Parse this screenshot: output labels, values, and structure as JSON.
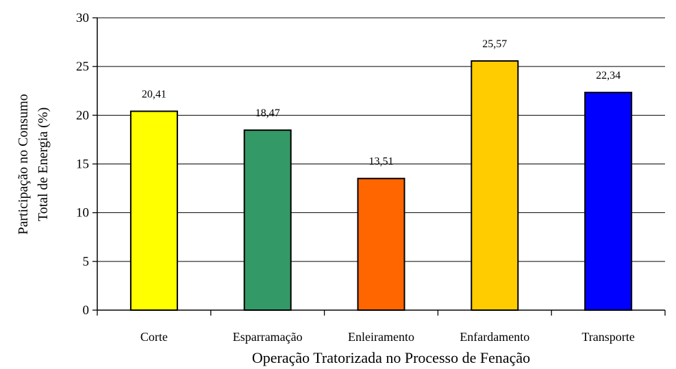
{
  "chart_data": {
    "type": "bar",
    "categories": [
      "Corte",
      "Esparramação",
      "Enleiramento",
      "Enfardamento",
      "Transporte"
    ],
    "values": [
      20.41,
      18.47,
      13.51,
      25.57,
      22.34
    ],
    "data_labels": [
      "20,41",
      "18,47",
      "13,51",
      "25,57",
      "22,34"
    ],
    "colors": [
      "#ffff00",
      "#339966",
      "#ff6600",
      "#ffcc00",
      "#0000ff"
    ],
    "xlabel": "Operação Tratorizada no Processo de Fenação",
    "ylabel_lines": [
      "Participação no Consumo",
      "Total de Energia (%)"
    ],
    "ylim": [
      0,
      30
    ],
    "yticks": [
      0,
      5,
      10,
      15,
      20,
      25,
      30
    ],
    "grid": true,
    "legend": "none"
  }
}
